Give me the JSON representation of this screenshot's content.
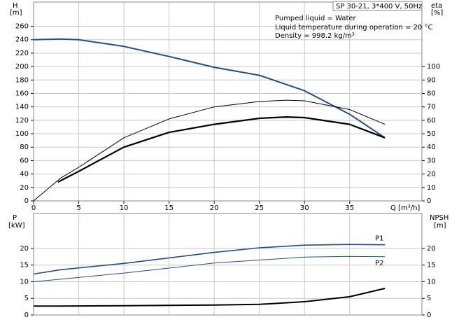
{
  "chart_data": [
    {
      "type": "line",
      "ylabel": "H",
      "yunit": "[m]",
      "y2label": "eta",
      "y2unit": "[%]",
      "xlabel": "Q [m³/h]",
      "header": "SP 30-21, 3*400 V, 50Hz",
      "notes": [
        "Pumped liquid = Water",
        "Liquid temperature during operation = 20 °C",
        "Density = 998.2 kg/m³"
      ],
      "xlim": [
        0,
        43
      ],
      "xticks": [
        0,
        5,
        10,
        15,
        20,
        25,
        30,
        35
      ],
      "ylim": [
        0,
        296
      ],
      "yticks": [
        0,
        20,
        40,
        60,
        80,
        100,
        120,
        140,
        160,
        180,
        200,
        220,
        240,
        260
      ],
      "y2lim": [
        0,
        148
      ],
      "y2ticks": [
        0,
        10,
        20,
        30,
        40,
        50,
        60,
        70,
        80,
        90,
        100
      ],
      "grid": true,
      "series": [
        {
          "color": "#1f4e8c",
          "width": 2,
          "x": [
            0,
            3,
            5,
            10,
            15,
            20,
            25,
            30,
            35,
            38.9
          ],
          "values": [
            240,
            241,
            240,
            230,
            215,
            199,
            187,
            164,
            129,
            94
          ]
        },
        {
          "color": "#000000",
          "width": 1,
          "axis": "y2",
          "x": [
            0,
            3,
            5,
            10,
            15,
            20,
            25,
            28,
            30,
            35,
            38.9
          ],
          "values": [
            0,
            17,
            25,
            47,
            61,
            70,
            74,
            75,
            74.5,
            68,
            57
          ]
        },
        {
          "color": "#000000",
          "width": 2.2,
          "axis": "y2",
          "x": [
            2.7,
            5,
            10,
            15,
            20,
            25,
            28,
            30,
            35,
            38.9
          ],
          "values": [
            14,
            22,
            40,
            51,
            57,
            61.5,
            62.5,
            62,
            57,
            47
          ]
        }
      ]
    },
    {
      "type": "line",
      "ylabel": "P",
      "yunit": "[kW]",
      "y2label": "NPSH",
      "y2unit": "[m]",
      "xlim": [
        0,
        43
      ],
      "ylim": [
        0,
        30.5
      ],
      "yticks": [
        0,
        5,
        10,
        15,
        20
      ],
      "y2lim": [
        0,
        30.5
      ],
      "y2ticks": [
        0,
        5,
        10,
        15,
        20
      ],
      "grid": true,
      "series": [
        {
          "name": "P1",
          "color": "#1f4e8c",
          "width": 1.6,
          "x": [
            0,
            3,
            10,
            20,
            25,
            30,
            35,
            38.9
          ],
          "values": [
            12.3,
            13.6,
            15.5,
            18.8,
            20.2,
            21,
            21.2,
            21.1
          ]
        },
        {
          "name": "P2",
          "color": "#1f4e8c",
          "width": 1,
          "x": [
            0,
            10,
            20,
            30,
            35,
            38.9
          ],
          "values": [
            10,
            12.6,
            15.6,
            17.4,
            17.6,
            17.5
          ]
        },
        {
          "color": "#000000",
          "width": 2,
          "axis": "y2",
          "x": [
            0,
            3,
            10,
            20,
            25,
            30,
            35,
            38.9
          ],
          "values": [
            2.7,
            2.7,
            2.8,
            3,
            3.2,
            4,
            5.5,
            8
          ]
        }
      ]
    }
  ]
}
